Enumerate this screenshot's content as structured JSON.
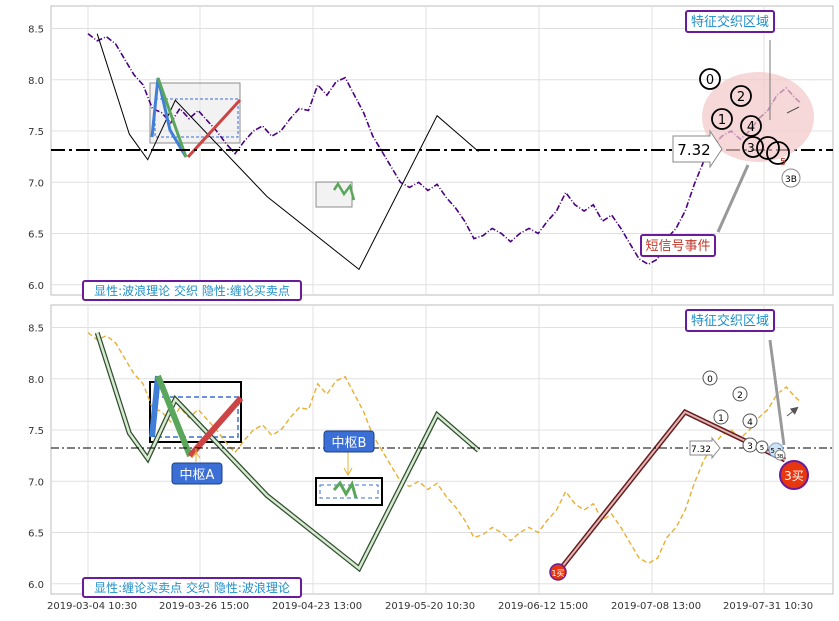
{
  "colors": {
    "top_price": "#4b0082",
    "bottom_price": "#e8b030",
    "pivot_line": "#000000",
    "box_fill": "#d9d9d9",
    "label_border": "#6a1b9a",
    "label_text_blue": "#1e90c8",
    "label_text_red": "#c0392b",
    "buy_marker": "#e8360e",
    "pivot_tag_fill": "#3b6fd6"
  },
  "x_ticks": [
    "2019-03-04 10:30",
    "2019-03-26 15:00",
    "2019-04-23 13:00",
    "2019-05-20 10:30",
    "2019-06-12 15:00",
    "2019-07-08 13:00",
    "2019-07-31 10:30"
  ],
  "top_panel": {
    "legend": "显性:波浪理论 交织 隐性:缠论买卖点",
    "badge_feature": "特征交织区域",
    "badge_signal": "短信号事件",
    "price_callout": "7.32",
    "wave_labels": [
      "0",
      "2",
      "1",
      "4",
      "3",
      "5",
      "3B"
    ]
  },
  "bottom_panel": {
    "legend": "显性:缠论买卖点 交织 隐性:波浪理论",
    "badge_feature": "特征交织区域",
    "pivot_a": "中枢A",
    "pivot_b": "中枢B",
    "buy1": "1买",
    "buy3": "3买",
    "price_callout": "7.32",
    "wave_labels": [
      "0",
      "2",
      "1",
      "4",
      "3",
      "5",
      "5.2",
      "3B"
    ]
  },
  "chart_data": [
    {
      "type": "line",
      "title": "",
      "panel": "top",
      "ylim": [
        5.9,
        8.72
      ],
      "y_ticks": [
        6.0,
        6.5,
        7.0,
        7.5,
        8.0,
        8.5
      ],
      "x_index_range": [
        0,
        155
      ],
      "horizontal_line": 7.32,
      "price_series": [
        [
          0,
          8.45
        ],
        [
          2,
          8.38
        ],
        [
          4,
          8.42
        ],
        [
          6,
          8.35
        ],
        [
          8,
          8.2
        ],
        [
          10,
          8.05
        ],
        [
          12,
          7.95
        ],
        [
          14,
          7.72
        ],
        [
          16,
          7.68
        ],
        [
          18,
          7.58
        ],
        [
          20,
          7.72
        ],
        [
          22,
          7.62
        ],
        [
          24,
          7.7
        ],
        [
          26,
          7.6
        ],
        [
          28,
          7.5
        ],
        [
          30,
          7.38
        ],
        [
          32,
          7.28
        ],
        [
          34,
          7.4
        ],
        [
          36,
          7.5
        ],
        [
          38,
          7.55
        ],
        [
          40,
          7.45
        ],
        [
          42,
          7.5
        ],
        [
          44,
          7.62
        ],
        [
          46,
          7.72
        ],
        [
          48,
          7.7
        ],
        [
          50,
          7.95
        ],
        [
          52,
          7.85
        ],
        [
          54,
          7.98
        ],
        [
          56,
          8.02
        ],
        [
          58,
          7.85
        ],
        [
          60,
          7.68
        ],
        [
          62,
          7.45
        ],
        [
          64,
          7.3
        ],
        [
          66,
          7.15
        ],
        [
          68,
          7.0
        ],
        [
          70,
          6.95
        ],
        [
          72,
          7.0
        ],
        [
          74,
          6.92
        ],
        [
          76,
          6.98
        ],
        [
          78,
          6.85
        ],
        [
          80,
          6.75
        ],
        [
          82,
          6.62
        ],
        [
          84,
          6.45
        ],
        [
          86,
          6.48
        ],
        [
          88,
          6.55
        ],
        [
          90,
          6.5
        ],
        [
          92,
          6.42
        ],
        [
          94,
          6.5
        ],
        [
          96,
          6.55
        ],
        [
          98,
          6.5
        ],
        [
          100,
          6.62
        ],
        [
          102,
          6.72
        ],
        [
          104,
          6.9
        ],
        [
          106,
          6.78
        ],
        [
          108,
          6.72
        ],
        [
          110,
          6.78
        ],
        [
          112,
          6.62
        ],
        [
          114,
          6.68
        ],
        [
          116,
          6.55
        ],
        [
          118,
          6.4
        ],
        [
          120,
          6.25
        ],
        [
          122,
          6.2
        ],
        [
          124,
          6.25
        ],
        [
          126,
          6.45
        ],
        [
          128,
          6.55
        ],
        [
          130,
          6.72
        ],
        [
          132,
          6.98
        ],
        [
          134,
          7.2
        ],
        [
          136,
          7.35
        ],
        [
          138,
          7.45
        ],
        [
          140,
          7.5
        ],
        [
          142,
          7.42
        ],
        [
          144,
          7.5
        ],
        [
          146,
          7.62
        ],
        [
          148,
          7.7
        ],
        [
          150,
          7.85
        ],
        [
          152,
          7.92
        ],
        [
          154,
          7.82
        ],
        [
          155,
          7.78
        ]
      ],
      "pivot_line": [
        [
          2,
          8.45
        ],
        [
          9,
          7.47
        ],
        [
          13,
          7.22
        ],
        [
          19,
          7.8
        ],
        [
          39,
          6.86
        ],
        [
          59,
          6.15
        ],
        [
          76,
          7.65
        ],
        [
          85,
          7.3
        ]
      ]
    },
    {
      "type": "line",
      "title": "",
      "panel": "bottom",
      "ylim": [
        5.9,
        8.72
      ],
      "y_ticks": [
        6.0,
        6.5,
        7.0,
        7.5,
        8.0,
        8.5
      ],
      "x_index_range": [
        0,
        155
      ],
      "horizontal_line": 7.32,
      "price_series": [
        [
          0,
          8.45
        ],
        [
          2,
          8.38
        ],
        [
          4,
          8.42
        ],
        [
          6,
          8.35
        ],
        [
          8,
          8.2
        ],
        [
          10,
          8.05
        ],
        [
          12,
          7.95
        ],
        [
          14,
          7.72
        ],
        [
          16,
          7.68
        ],
        [
          18,
          7.58
        ],
        [
          20,
          7.72
        ],
        [
          22,
          7.62
        ],
        [
          24,
          7.7
        ],
        [
          26,
          7.6
        ],
        [
          28,
          7.5
        ],
        [
          30,
          7.38
        ],
        [
          32,
          7.28
        ],
        [
          34,
          7.4
        ],
        [
          36,
          7.5
        ],
        [
          38,
          7.55
        ],
        [
          40,
          7.45
        ],
        [
          42,
          7.5
        ],
        [
          44,
          7.62
        ],
        [
          46,
          7.72
        ],
        [
          48,
          7.7
        ],
        [
          50,
          7.95
        ],
        [
          52,
          7.85
        ],
        [
          54,
          7.98
        ],
        [
          56,
          8.02
        ],
        [
          58,
          7.85
        ],
        [
          60,
          7.68
        ],
        [
          62,
          7.45
        ],
        [
          64,
          7.3
        ],
        [
          66,
          7.15
        ],
        [
          68,
          7.0
        ],
        [
          70,
          6.95
        ],
        [
          72,
          7.0
        ],
        [
          74,
          6.92
        ],
        [
          76,
          6.98
        ],
        [
          78,
          6.85
        ],
        [
          80,
          6.75
        ],
        [
          82,
          6.62
        ],
        [
          84,
          6.45
        ],
        [
          86,
          6.48
        ],
        [
          88,
          6.55
        ],
        [
          90,
          6.5
        ],
        [
          92,
          6.42
        ],
        [
          94,
          6.5
        ],
        [
          96,
          6.55
        ],
        [
          98,
          6.5
        ],
        [
          100,
          6.62
        ],
        [
          102,
          6.72
        ],
        [
          104,
          6.9
        ],
        [
          106,
          6.78
        ],
        [
          108,
          6.72
        ],
        [
          110,
          6.78
        ],
        [
          112,
          6.62
        ],
        [
          114,
          6.68
        ],
        [
          116,
          6.55
        ],
        [
          118,
          6.4
        ],
        [
          120,
          6.25
        ],
        [
          122,
          6.2
        ],
        [
          124,
          6.25
        ],
        [
          126,
          6.45
        ],
        [
          128,
          6.55
        ],
        [
          130,
          6.72
        ],
        [
          132,
          6.98
        ],
        [
          134,
          7.2
        ],
        [
          136,
          7.35
        ],
        [
          138,
          7.45
        ],
        [
          140,
          7.5
        ],
        [
          142,
          7.42
        ],
        [
          144,
          7.5
        ],
        [
          146,
          7.62
        ],
        [
          148,
          7.7
        ],
        [
          150,
          7.85
        ],
        [
          152,
          7.92
        ],
        [
          154,
          7.82
        ],
        [
          155,
          7.78
        ]
      ],
      "pivot_line": [
        [
          2,
          8.45
        ],
        [
          9,
          7.47
        ],
        [
          13,
          7.22
        ],
        [
          19,
          7.8
        ],
        [
          39,
          6.86
        ],
        [
          59,
          6.15
        ],
        [
          76,
          7.65
        ],
        [
          85,
          7.3
        ]
      ]
    }
  ]
}
